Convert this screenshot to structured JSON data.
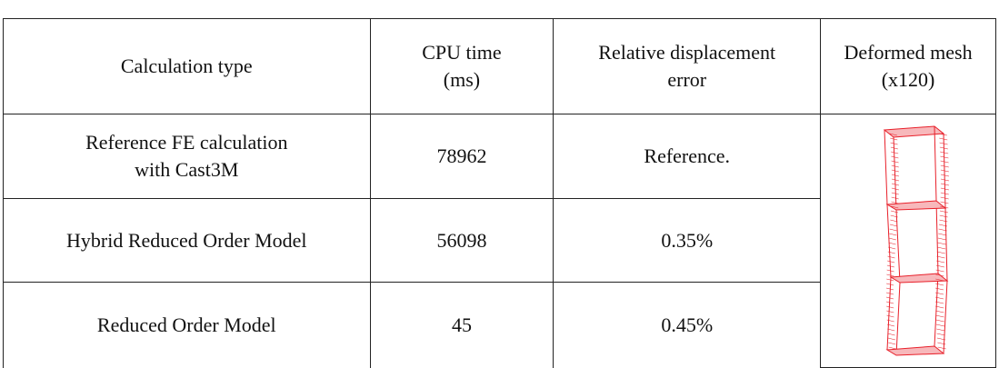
{
  "table": {
    "headers": [
      [
        "Calculation type"
      ],
      [
        "CPU time",
        "(ms)"
      ],
      [
        "Relative displacement",
        "error"
      ],
      [
        "Deformed mesh",
        "(x120)"
      ]
    ],
    "rows": [
      [
        [
          "Reference FE calculation",
          "with Cast3M"
        ],
        [
          "78962"
        ],
        [
          "Reference."
        ]
      ],
      [
        [
          "Hybrid Reduced Order Model"
        ],
        [
          "56098"
        ],
        [
          "0.35%"
        ]
      ],
      [
        [
          "Reduced Order Model"
        ],
        [
          "45"
        ],
        [
          "0.45%"
        ]
      ]
    ]
  }
}
